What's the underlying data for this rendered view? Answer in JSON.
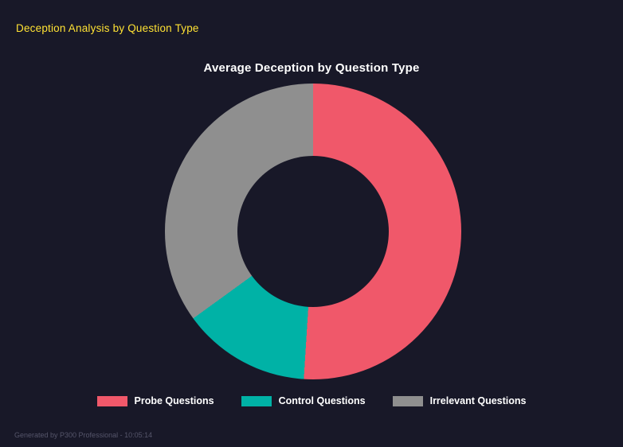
{
  "header": {
    "title": "Deception Analysis by Question Type"
  },
  "chart_data": {
    "type": "pie",
    "subtype": "donut",
    "title": "Average Deception by Question Type",
    "categories": [
      "Probe Questions",
      "Control Questions",
      "Irrelevant Questions"
    ],
    "values": [
      51,
      14,
      35
    ],
    "values_note": "percent share estimated from arc angles; no numeric labels shown in image",
    "colors": [
      "#f0586a",
      "#00b2a6",
      "#8f8f8f"
    ],
    "start_angle_deg": 0,
    "direction": "clockwise",
    "legend_position": "bottom",
    "hole_ratio": 0.51
  },
  "legend": {
    "items": [
      {
        "label": "Probe Questions",
        "color": "#f0586a"
      },
      {
        "label": "Control Questions",
        "color": "#00b2a6"
      },
      {
        "label": "Irrelevant Questions",
        "color": "#8f8f8f"
      }
    ]
  },
  "footer": {
    "text": "Generated by P300 Professional - 10:05:14"
  },
  "theme": {
    "background": "#181828",
    "header_text": "#ffe234",
    "title_text": "#ffffff",
    "footer_text": "#55556a"
  }
}
